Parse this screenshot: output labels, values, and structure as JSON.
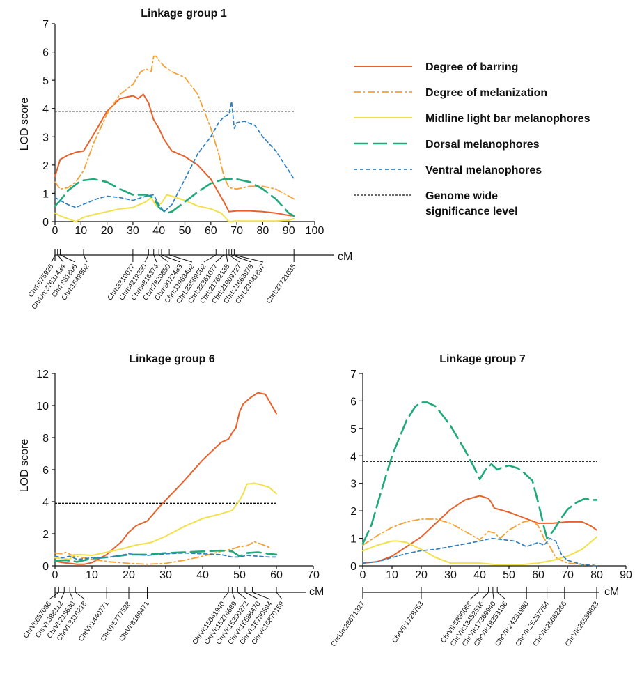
{
  "legend": [
    {
      "label": "Degree of barring",
      "color": "#e8602a",
      "dash": "solid"
    },
    {
      "label": "Degree of melanization",
      "color": "#f5a033",
      "dash": "dashdot"
    },
    {
      "label": "Midline light bar melanophores",
      "color": "#f2e04a",
      "dash": "solid"
    },
    {
      "label": "Dorsal melanophores",
      "color": "#1fa97a",
      "dash": "longdash"
    },
    {
      "label": "Ventral melanophores",
      "color": "#2f7fc1",
      "dash": "shortdash"
    },
    {
      "label": "Genome wide significance level",
      "label_lines": [
        "Genome wide",
        "significance level"
      ],
      "color": "#111111",
      "dash": "dotted"
    }
  ],
  "chart_data": [
    {
      "type": "line",
      "title": "Linkage group 1",
      "ylabel": "LOD score",
      "xlabel": "cM",
      "xlim": [
        0,
        100
      ],
      "ylim": [
        0,
        7
      ],
      "xticks": [
        0,
        10,
        20,
        30,
        40,
        50,
        60,
        70,
        80,
        90,
        100
      ],
      "yticks": [
        0,
        1,
        2,
        3,
        4,
        5,
        6,
        7
      ],
      "threshold": 3.9,
      "series": [
        {
          "name": "Degree of barring",
          "x": [
            0,
            2,
            5,
            8,
            11,
            15,
            20,
            25,
            30,
            32,
            34,
            36,
            38,
            40,
            42,
            45,
            50,
            55,
            60,
            65,
            67,
            70,
            75,
            80,
            85,
            90,
            92
          ],
          "y": [
            1.6,
            2.2,
            2.35,
            2.45,
            2.5,
            3.1,
            3.9,
            4.35,
            4.45,
            4.35,
            4.5,
            4.2,
            3.6,
            3.3,
            2.9,
            2.5,
            2.3,
            2.0,
            1.5,
            0.7,
            0.35,
            0.38,
            0.38,
            0.35,
            0.3,
            0.22,
            0.2
          ]
        },
        {
          "name": "Degree of melanization",
          "x": [
            0,
            2,
            5,
            8,
            11,
            15,
            20,
            25,
            30,
            33,
            35,
            37,
            38,
            39,
            40,
            42,
            45,
            50,
            55,
            60,
            63,
            65,
            67,
            70,
            75,
            80,
            85,
            90,
            92
          ],
          "y": [
            1.4,
            1.15,
            1.2,
            1.4,
            1.8,
            2.8,
            3.8,
            4.5,
            4.85,
            5.3,
            5.4,
            5.3,
            5.85,
            5.85,
            5.7,
            5.5,
            5.3,
            5.1,
            4.5,
            3.3,
            2.4,
            1.6,
            1.2,
            1.15,
            1.25,
            1.25,
            1.15,
            0.9,
            0.8
          ]
        },
        {
          "name": "Midline light bar melanophores",
          "x": [
            0,
            2,
            5,
            8,
            11,
            15,
            20,
            25,
            30,
            35,
            37,
            39,
            41,
            43,
            45,
            50,
            55,
            60,
            64,
            67,
            70,
            75,
            80,
            85,
            90,
            92
          ],
          "y": [
            0.3,
            0.2,
            0.1,
            0.0,
            0.15,
            0.25,
            0.35,
            0.45,
            0.5,
            0.7,
            0.85,
            0.55,
            0.65,
            0.95,
            0.9,
            0.75,
            0.55,
            0.45,
            0.3,
            0.0,
            0.02,
            0.02,
            0.02,
            0.02,
            0.05,
            0.1
          ]
        },
        {
          "name": "Dorsal melanophores",
          "x": [
            0,
            2,
            5,
            10,
            15,
            20,
            25,
            30,
            35,
            38,
            40,
            43,
            45,
            50,
            55,
            60,
            65,
            67,
            70,
            75,
            80,
            85,
            90,
            92
          ],
          "y": [
            0.55,
            0.75,
            1.1,
            1.45,
            1.5,
            1.4,
            1.15,
            0.95,
            0.95,
            0.85,
            0.5,
            0.3,
            0.35,
            0.7,
            1.05,
            1.35,
            1.5,
            1.5,
            1.5,
            1.4,
            1.15,
            0.8,
            0.3,
            0.2
          ]
        },
        {
          "name": "Ventral melanophores",
          "x": [
            0,
            2,
            5,
            8,
            12,
            16,
            20,
            25,
            30,
            35,
            38,
            40,
            42,
            45,
            50,
            55,
            60,
            63,
            65,
            67,
            68,
            69,
            70,
            73,
            77,
            80,
            85,
            90,
            92
          ],
          "y": [
            0.85,
            0.75,
            0.6,
            0.5,
            0.65,
            0.8,
            0.9,
            0.85,
            0.75,
            0.9,
            0.95,
            0.6,
            0.35,
            0.6,
            1.5,
            2.4,
            3.0,
            3.5,
            3.7,
            3.8,
            4.25,
            3.3,
            3.5,
            3.55,
            3.4,
            3.0,
            2.5,
            1.8,
            1.5
          ]
        }
      ],
      "markers": [
        {
          "cM": 0,
          "label": "ChrI:675926"
        },
        {
          "cM": 1,
          "label": "ChrUn:37631434"
        },
        {
          "cM": 2,
          "label": "ChrI:881806"
        },
        {
          "cM": 11,
          "label": "ChrI:1549902"
        },
        {
          "cM": 30,
          "label": "ChrI:3310077"
        },
        {
          "cM": 36,
          "label": "ChrI:4219350"
        },
        {
          "cM": 38,
          "label": "ChrI:4816374"
        },
        {
          "cM": 40,
          "label": "ChrI:7820850"
        },
        {
          "cM": 41,
          "label": "ChrI:8072483"
        },
        {
          "cM": 44,
          "label": "ChrI:11963492"
        },
        {
          "cM": 62,
          "label": "ChrI:23569502"
        },
        {
          "cM": 65,
          "label": "ChrI:22361077"
        },
        {
          "cM": 66,
          "label": "ChrI:21762138"
        },
        {
          "cM": 67,
          "label": "ChrI:21909727"
        },
        {
          "cM": 68,
          "label": "ChrI:21663978"
        },
        {
          "cM": 69,
          "label": "ChrI:21641897"
        },
        {
          "cM": 92,
          "label": "ChrI:27721035"
        }
      ]
    },
    {
      "type": "line",
      "title": "Linkage group 6",
      "ylabel": "LOD score",
      "xlabel": "cM",
      "xlim": [
        0,
        70
      ],
      "ylim": [
        0,
        12
      ],
      "xticks": [
        0,
        10,
        20,
        30,
        40,
        50,
        60,
        70
      ],
      "yticks": [
        0,
        2,
        4,
        6,
        8,
        10,
        12
      ],
      "threshold": 3.9,
      "series": [
        {
          "name": "Degree of barring",
          "x": [
            0,
            2,
            4,
            6,
            8,
            10,
            14,
            18,
            20,
            22,
            25,
            28,
            30,
            35,
            40,
            45,
            47,
            48,
            49,
            50,
            51,
            52,
            53,
            55,
            57,
            60
          ],
          "y": [
            0.3,
            0.2,
            0.15,
            0.1,
            0.1,
            0.2,
            0.7,
            1.5,
            2.1,
            2.5,
            2.8,
            3.6,
            4.1,
            5.3,
            6.6,
            7.7,
            7.9,
            8.3,
            8.6,
            9.6,
            10.1,
            10.3,
            10.5,
            10.8,
            10.7,
            9.5
          ]
        },
        {
          "name": "Degree of melanization",
          "x": [
            0,
            2,
            3,
            5,
            8,
            10,
            15,
            20,
            25,
            30,
            35,
            40,
            45,
            48,
            50,
            52,
            54,
            56,
            58
          ],
          "y": [
            0.8,
            0.75,
            0.85,
            0.6,
            0.5,
            0.4,
            0.25,
            0.15,
            0.1,
            0.15,
            0.35,
            0.6,
            0.9,
            1.05,
            1.2,
            1.25,
            1.5,
            1.35,
            1.15
          ]
        },
        {
          "name": "Midline light bar melanophores",
          "x": [
            0,
            2,
            4,
            5,
            7,
            10,
            14,
            18,
            22,
            26,
            30,
            35,
            40,
            45,
            48,
            50,
            51,
            52,
            54,
            56,
            58,
            60
          ],
          "y": [
            0.5,
            0.45,
            0.4,
            0.7,
            0.7,
            0.65,
            0.85,
            1.05,
            1.3,
            1.45,
            1.85,
            2.45,
            2.95,
            3.25,
            3.45,
            4.1,
            4.5,
            5.1,
            5.15,
            5.05,
            4.9,
            4.5
          ]
        },
        {
          "name": "Dorsal melanophores",
          "x": [
            0,
            3,
            6,
            10,
            15,
            20,
            25,
            30,
            35,
            40,
            45,
            48,
            50,
            52,
            55,
            58,
            60
          ],
          "y": [
            0.3,
            0.35,
            0.25,
            0.45,
            0.55,
            0.7,
            0.7,
            0.8,
            0.85,
            0.9,
            0.95,
            0.9,
            0.6,
            0.8,
            0.85,
            0.75,
            0.7
          ]
        },
        {
          "name": "Ventral melanophores",
          "x": [
            0,
            2,
            4,
            6,
            10,
            15,
            20,
            25,
            30,
            35,
            40,
            45,
            48,
            50,
            52,
            55,
            58,
            60
          ],
          "y": [
            0.6,
            0.5,
            0.6,
            0.4,
            0.5,
            0.55,
            0.75,
            0.65,
            0.75,
            0.8,
            0.75,
            0.7,
            0.55,
            0.55,
            0.65,
            0.6,
            0.55,
            0.55
          ]
        }
      ],
      "markers": [
        {
          "cM": 1,
          "label": "ChrVI:657036"
        },
        {
          "cM": 2.5,
          "label": "ChrVI:388112"
        },
        {
          "cM": 4,
          "label": "ChrVI:218630"
        },
        {
          "cM": 5.5,
          "label": "ChrVI:3116218"
        },
        {
          "cM": 14,
          "label": "ChrVI:1440771"
        },
        {
          "cM": 20,
          "label": "ChrVI:5777528"
        },
        {
          "cM": 25,
          "label": "ChrVI:8169471"
        },
        {
          "cM": 47,
          "label": "ChrVI:15041940"
        },
        {
          "cM": 48,
          "label": "ChrVI:15274689"
        },
        {
          "cM": 49.5,
          "label": "ChrVI:15390272"
        },
        {
          "cM": 51.5,
          "label": "ChrVI:15586470"
        },
        {
          "cM": 53.5,
          "label": "ChrVI:15780594"
        },
        {
          "cM": 60,
          "label": "ChrVI:16870159"
        }
      ]
    },
    {
      "type": "line",
      "title": "Linkage group 7",
      "ylabel": "",
      "xlabel": "cM",
      "xlim": [
        0,
        90
      ],
      "ylim": [
        0,
        7
      ],
      "xticks": [
        0,
        10,
        20,
        30,
        40,
        50,
        60,
        70,
        80,
        90
      ],
      "yticks": [
        0,
        1,
        2,
        3,
        4,
        5,
        6,
        7
      ],
      "threshold": 3.8,
      "series": [
        {
          "name": "Degree of barring",
          "x": [
            0,
            5,
            10,
            15,
            20,
            25,
            30,
            35,
            40,
            43,
            44,
            45,
            50,
            55,
            60,
            65,
            70,
            75,
            78,
            80
          ],
          "y": [
            0.1,
            0.15,
            0.35,
            0.7,
            1.05,
            1.55,
            2.05,
            2.4,
            2.55,
            2.45,
            2.3,
            2.1,
            1.95,
            1.75,
            1.55,
            1.55,
            1.6,
            1.6,
            1.45,
            1.3
          ]
        },
        {
          "name": "Degree of melanization",
          "x": [
            0,
            5,
            10,
            15,
            20,
            25,
            30,
            35,
            40,
            43,
            45,
            47,
            50,
            55,
            58,
            60,
            62,
            64,
            66,
            70,
            75,
            80
          ],
          "y": [
            0.75,
            1.1,
            1.4,
            1.6,
            1.7,
            1.7,
            1.55,
            1.25,
            0.95,
            1.25,
            1.2,
            1.0,
            1.3,
            1.6,
            1.65,
            1.45,
            1.0,
            0.7,
            0.3,
            0.1,
            0.05,
            0.05
          ]
        },
        {
          "name": "Midline light bar melanophores",
          "x": [
            0,
            5,
            10,
            12,
            15,
            20,
            25,
            30,
            35,
            40,
            45,
            50,
            55,
            60,
            65,
            70,
            75,
            80
          ],
          "y": [
            0.55,
            0.75,
            0.9,
            0.9,
            0.85,
            0.6,
            0.3,
            0.1,
            0.1,
            0.1,
            0.05,
            0.05,
            0.05,
            0.1,
            0.2,
            0.35,
            0.6,
            1.05
          ]
        },
        {
          "name": "Dorsal melanophores",
          "x": [
            0,
            3,
            6,
            10,
            15,
            18,
            20,
            22,
            25,
            30,
            35,
            38,
            40,
            42,
            44,
            46,
            48,
            50,
            53,
            55,
            58,
            60,
            62,
            63,
            65,
            68,
            70,
            73,
            76,
            78,
            80
          ],
          "y": [
            0.8,
            1.5,
            2.6,
            4.0,
            5.3,
            5.8,
            5.95,
            5.95,
            5.8,
            5.1,
            4.2,
            3.6,
            3.15,
            3.5,
            3.7,
            3.5,
            3.6,
            3.65,
            3.55,
            3.4,
            3.1,
            2.3,
            1.4,
            1.0,
            1.25,
            1.75,
            2.05,
            2.3,
            2.45,
            2.4,
            2.4
          ]
        },
        {
          "name": "Ventral melanophores",
          "x": [
            0,
            5,
            10,
            15,
            20,
            25,
            30,
            35,
            40,
            44,
            48,
            52,
            56,
            60,
            62,
            64,
            66,
            68,
            70,
            75,
            80
          ],
          "y": [
            0.1,
            0.15,
            0.3,
            0.45,
            0.55,
            0.6,
            0.7,
            0.8,
            0.9,
            1.0,
            0.95,
            0.9,
            0.7,
            0.85,
            0.75,
            1.0,
            0.9,
            0.4,
            0.2,
            0.05,
            0.0
          ]
        }
      ],
      "markers": [
        {
          "cM": 0,
          "label": "ChrUn:28671327"
        },
        {
          "cM": 20,
          "label": "ChrVII:1728753"
        },
        {
          "cM": 39.5,
          "label": "ChrVII:5936068"
        },
        {
          "cM": 43,
          "label": "ChrVII:13452516"
        },
        {
          "cM": 44.5,
          "label": "ChrVII:17369940"
        },
        {
          "cM": 46,
          "label": "ChrVII:18353106"
        },
        {
          "cM": 56,
          "label": "ChrVII:24331980"
        },
        {
          "cM": 63,
          "label": "ChrVII:25257754"
        },
        {
          "cM": 69,
          "label": "ChrVII:25662266"
        },
        {
          "cM": 80,
          "label": "ChrVII:26538823"
        }
      ]
    }
  ]
}
